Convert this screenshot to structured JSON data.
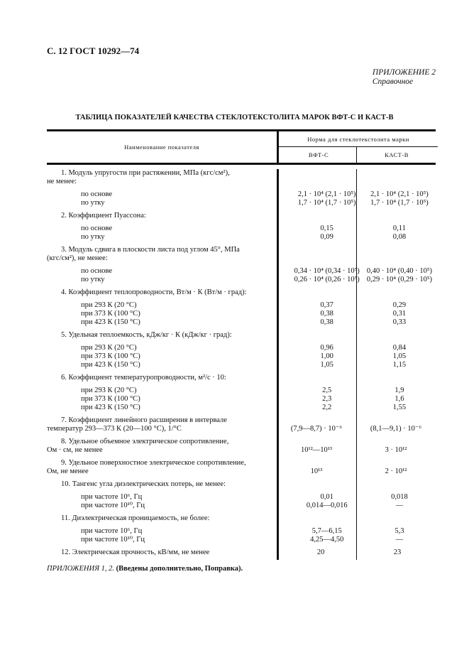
{
  "header": "С. 12 ГОСТ 10292—74",
  "appendix": {
    "label": "ПРИЛОЖЕНИЕ 2",
    "note": "Справочное"
  },
  "title": "ТАБЛИЦА ПОКАЗАТЕЛЕЙ КАЧЕСТВА СТЕКЛОТЕКСТОЛИТА МАРОК ВФТ-С И КАСТ-В",
  "table": {
    "col_name": "Наименование показателя",
    "col_group": "Норма для стеклотекстолита марки",
    "col_a": "ВФТ-С",
    "col_b": "КАСТ-В",
    "items": [
      {
        "heading": [
          "1. Модуль упругости при растяжении, МПа (кгс/см²),",
          "не менее:"
        ],
        "rows": [
          [
            "по основе",
            "2,1 · 10⁴ (2,1 · 10⁵)",
            "2,1 · 10⁴ (2,1 · 10⁵)"
          ],
          [
            "по утку",
            "1,7 · 10⁴ (1,7 · 10⁵)",
            "1,7 · 10⁴ (1,7 · 10⁵)"
          ]
        ]
      },
      {
        "heading": [
          "2. Коэффициент Пуассона:"
        ],
        "rows": [
          [
            "по основе",
            "0,15",
            "0,11"
          ],
          [
            "по утку",
            "0,09",
            "0,08"
          ]
        ]
      },
      {
        "heading": [
          "3. Модуль сдвига в плоскости листа под углом 45°, МПа",
          "(кгс/см²), не менее:"
        ],
        "rows": [
          [
            "по основе",
            "0,34 · 10⁴ (0,34 · 10⁵)",
            "0,40 · 10⁴ (0,40 · 10⁵)"
          ],
          [
            "по утку",
            "0,26 · 10⁴ (0,26 · 10⁵)",
            "0,29 · 10⁴ (0,29 · 10⁵)"
          ]
        ]
      },
      {
        "heading": [
          "4. Коэффициент теплопроводности, Вт/м · К (Вт/м · град):"
        ],
        "rows": [
          [
            "при 293 К (20 °С)",
            "0,37",
            "0,29"
          ],
          [
            "при 373 К (100 °С)",
            "0,38",
            "0,31"
          ],
          [
            "при 423 К (150 °С)",
            "0,38",
            "0,33"
          ]
        ]
      },
      {
        "heading": [
          "5. Удельная теплоемкость, кДж/кг · К (кДж/кг · град):"
        ],
        "rows": [
          [
            "при 293 К (20 °С)",
            "0,96",
            "0,84"
          ],
          [
            "при 373 К (100 °С)",
            "1,00",
            "1,05"
          ],
          [
            "при 423 К (150 °С)",
            "1,05",
            "1,15"
          ]
        ]
      },
      {
        "heading": [
          "6. Коэффициент температуропроводности, м²/с · 10:"
        ],
        "rows": [
          [
            "при 293 К (20 °С)",
            "2,5",
            "1,9"
          ],
          [
            "при 373 К (100 °С)",
            "2,3",
            "1,6"
          ],
          [
            "при 423 К (150 °С)",
            "2,2",
            "1,55"
          ]
        ]
      },
      {
        "heading": [
          "7. Коэффициент линейного расширения в интервале",
          "температур 293—373 К (20—100 °С), 1/°С"
        ],
        "values": [
          "(7,9—8,7) · 10⁻⁶",
          "(8,1—9,1) · 10⁻⁶"
        ]
      },
      {
        "heading": [
          "8. Удельное объемное электрическое сопротивление,",
          "Ом · см, не менее"
        ],
        "values": [
          "10¹²—10¹³",
          "3 · 10¹²"
        ]
      },
      {
        "heading": [
          "9. Удельное поверхностное электрическое сопротивление,",
          "Ом, не менее"
        ],
        "values": [
          "10¹³",
          "2 · 10¹²"
        ]
      },
      {
        "heading": [
          "10. Тангенс угла диэлектрических потерь, не менее:"
        ],
        "rows": [
          [
            "при частоте 10⁶, Гц",
            "0,01",
            "0,018"
          ],
          [
            "при частоте 10¹⁰, Гц",
            "0,014—0,016",
            "—"
          ]
        ]
      },
      {
        "heading": [
          "11. Диэлектрическая проницаемость, не более:"
        ],
        "rows": [
          [
            "при частоте 10⁶, Гц",
            "5,7—6,15",
            "5,3"
          ],
          [
            "при частоте 10¹⁰, Гц",
            "4,25—4,50",
            "—"
          ]
        ]
      },
      {
        "heading": [
          "12. Электрическая прочность, кВ/мм, не менее"
        ],
        "values": [
          "20",
          "23"
        ]
      }
    ]
  },
  "footer": {
    "italic": "ПРИЛОЖЕНИЯ 1, 2.",
    "bold": "(Введены дополнительно, Поправка)."
  }
}
